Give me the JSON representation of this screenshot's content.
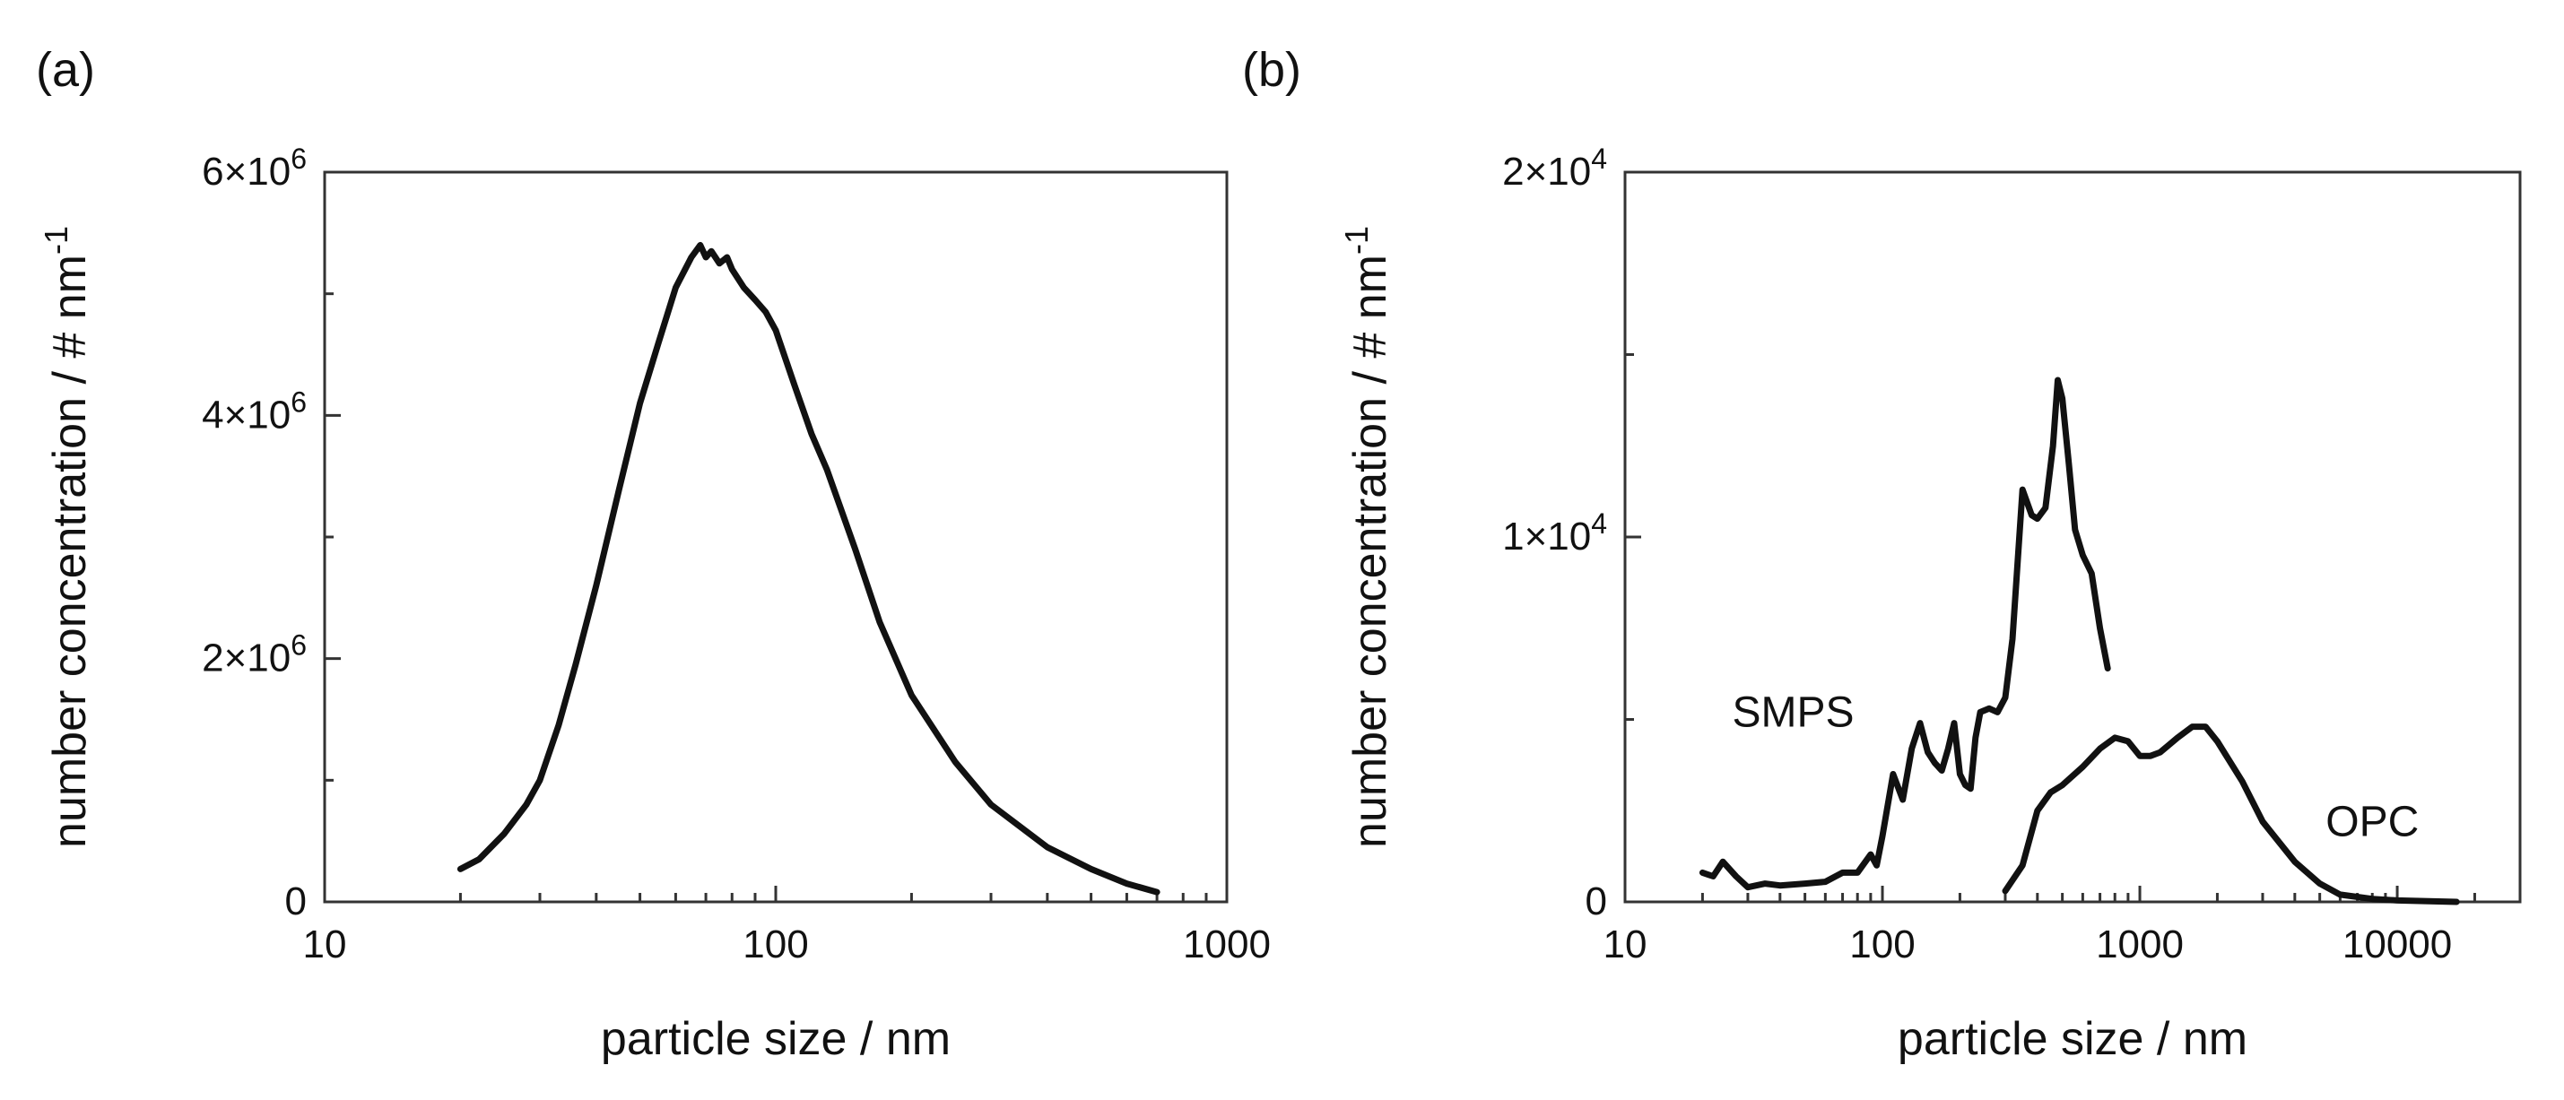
{
  "chart_data": [
    {
      "panel_label": "(a)",
      "type": "line",
      "title": "",
      "xlabel": "particle size / nm",
      "ylabel": "number concentration / # nm",
      "ylabel_superscript": "-1",
      "xscale": "log",
      "xlim": [
        10,
        1000
      ],
      "ylim": [
        0,
        6000000
      ],
      "xticks": [
        {
          "value": 10,
          "label": "10"
        },
        {
          "value": 100,
          "label": "100"
        },
        {
          "value": 1000,
          "label": "1000"
        }
      ],
      "yticks": [
        {
          "value": 0,
          "label": "0",
          "exp": ""
        },
        {
          "value": 2000000,
          "label": "2×10",
          "exp": "6"
        },
        {
          "value": 4000000,
          "label": "4×10",
          "exp": "6"
        },
        {
          "value": 6000000,
          "label": "6×10",
          "exp": "6"
        }
      ],
      "y_minor_step": 1000000,
      "grid": false,
      "series": [
        {
          "name": "particle size distribution",
          "x": [
            20,
            22,
            25,
            28,
            30,
            33,
            36,
            40,
            45,
            50,
            55,
            60,
            65,
            68,
            70,
            72,
            75,
            78,
            80,
            85,
            90,
            95,
            100,
            110,
            120,
            130,
            150,
            170,
            200,
            250,
            300,
            400,
            500,
            600,
            700
          ],
          "y": [
            270000,
            350000,
            560000,
            800000,
            1000000,
            1450000,
            1950000,
            2600000,
            3400000,
            4100000,
            4600000,
            5050000,
            5300000,
            5400000,
            5300000,
            5350000,
            5250000,
            5300000,
            5200000,
            5050000,
            4950000,
            4850000,
            4700000,
            4250000,
            3850000,
            3550000,
            2900000,
            2300000,
            1700000,
            1150000,
            800000,
            450000,
            270000,
            150000,
            80000
          ]
        }
      ],
      "annotations": []
    },
    {
      "panel_label": "(b)",
      "type": "line",
      "title": "",
      "xlabel": "particle size / nm",
      "ylabel": "number concentration / # nm",
      "ylabel_superscript": "-1",
      "xscale": "log",
      "xlim": [
        10,
        30000
      ],
      "ylim": [
        0,
        20000
      ],
      "xticks": [
        {
          "value": 10,
          "label": "10"
        },
        {
          "value": 100,
          "label": "100"
        },
        {
          "value": 1000,
          "label": "1000"
        },
        {
          "value": 10000,
          "label": "10000"
        }
      ],
      "yticks": [
        {
          "value": 0,
          "label": "0",
          "exp": ""
        },
        {
          "value": 10000,
          "label": "1×10",
          "exp": "4"
        },
        {
          "value": 20000,
          "label": "2×10",
          "exp": "4"
        }
      ],
      "y_minor_step": 5000,
      "grid": false,
      "series": [
        {
          "name": "SMPS",
          "x": [
            20,
            22,
            24,
            27,
            30,
            35,
            40,
            50,
            60,
            70,
            80,
            90,
            95,
            100,
            110,
            120,
            130,
            140,
            150,
            160,
            170,
            180,
            190,
            200,
            210,
            220,
            230,
            240,
            260,
            280,
            300,
            320,
            350,
            380,
            400,
            430,
            460,
            480,
            500,
            530,
            560,
            600,
            650,
            700,
            750
          ],
          "y": [
            800,
            700,
            1100,
            700,
            400,
            500,
            450,
            500,
            550,
            800,
            800,
            1300,
            1000,
            1800,
            3500,
            2800,
            4200,
            4900,
            4100,
            3800,
            3600,
            4200,
            4900,
            3500,
            3200,
            3100,
            4500,
            5200,
            5300,
            5200,
            5600,
            7200,
            11300,
            10600,
            10500,
            10800,
            12500,
            14300,
            13800,
            12000,
            10200,
            9500,
            9000,
            7500,
            6400
          ]
        },
        {
          "name": "OPC",
          "x": [
            300,
            350,
            400,
            450,
            500,
            600,
            700,
            800,
            900,
            1000,
            1100,
            1200,
            1400,
            1600,
            1800,
            2000,
            2500,
            3000,
            4000,
            5000,
            6000,
            8000,
            10000,
            15000,
            17000
          ],
          "y": [
            300,
            1000,
            2500,
            3000,
            3200,
            3700,
            4200,
            4500,
            4400,
            4000,
            4000,
            4100,
            4500,
            4800,
            4800,
            4400,
            3300,
            2200,
            1100,
            500,
            200,
            80,
            40,
            10,
            0
          ]
        }
      ],
      "annotations": [
        {
          "text": "SMPS",
          "x": 45,
          "y": 4800
        },
        {
          "text": "OPC",
          "x": 8000,
          "y": 1800
        }
      ]
    }
  ]
}
